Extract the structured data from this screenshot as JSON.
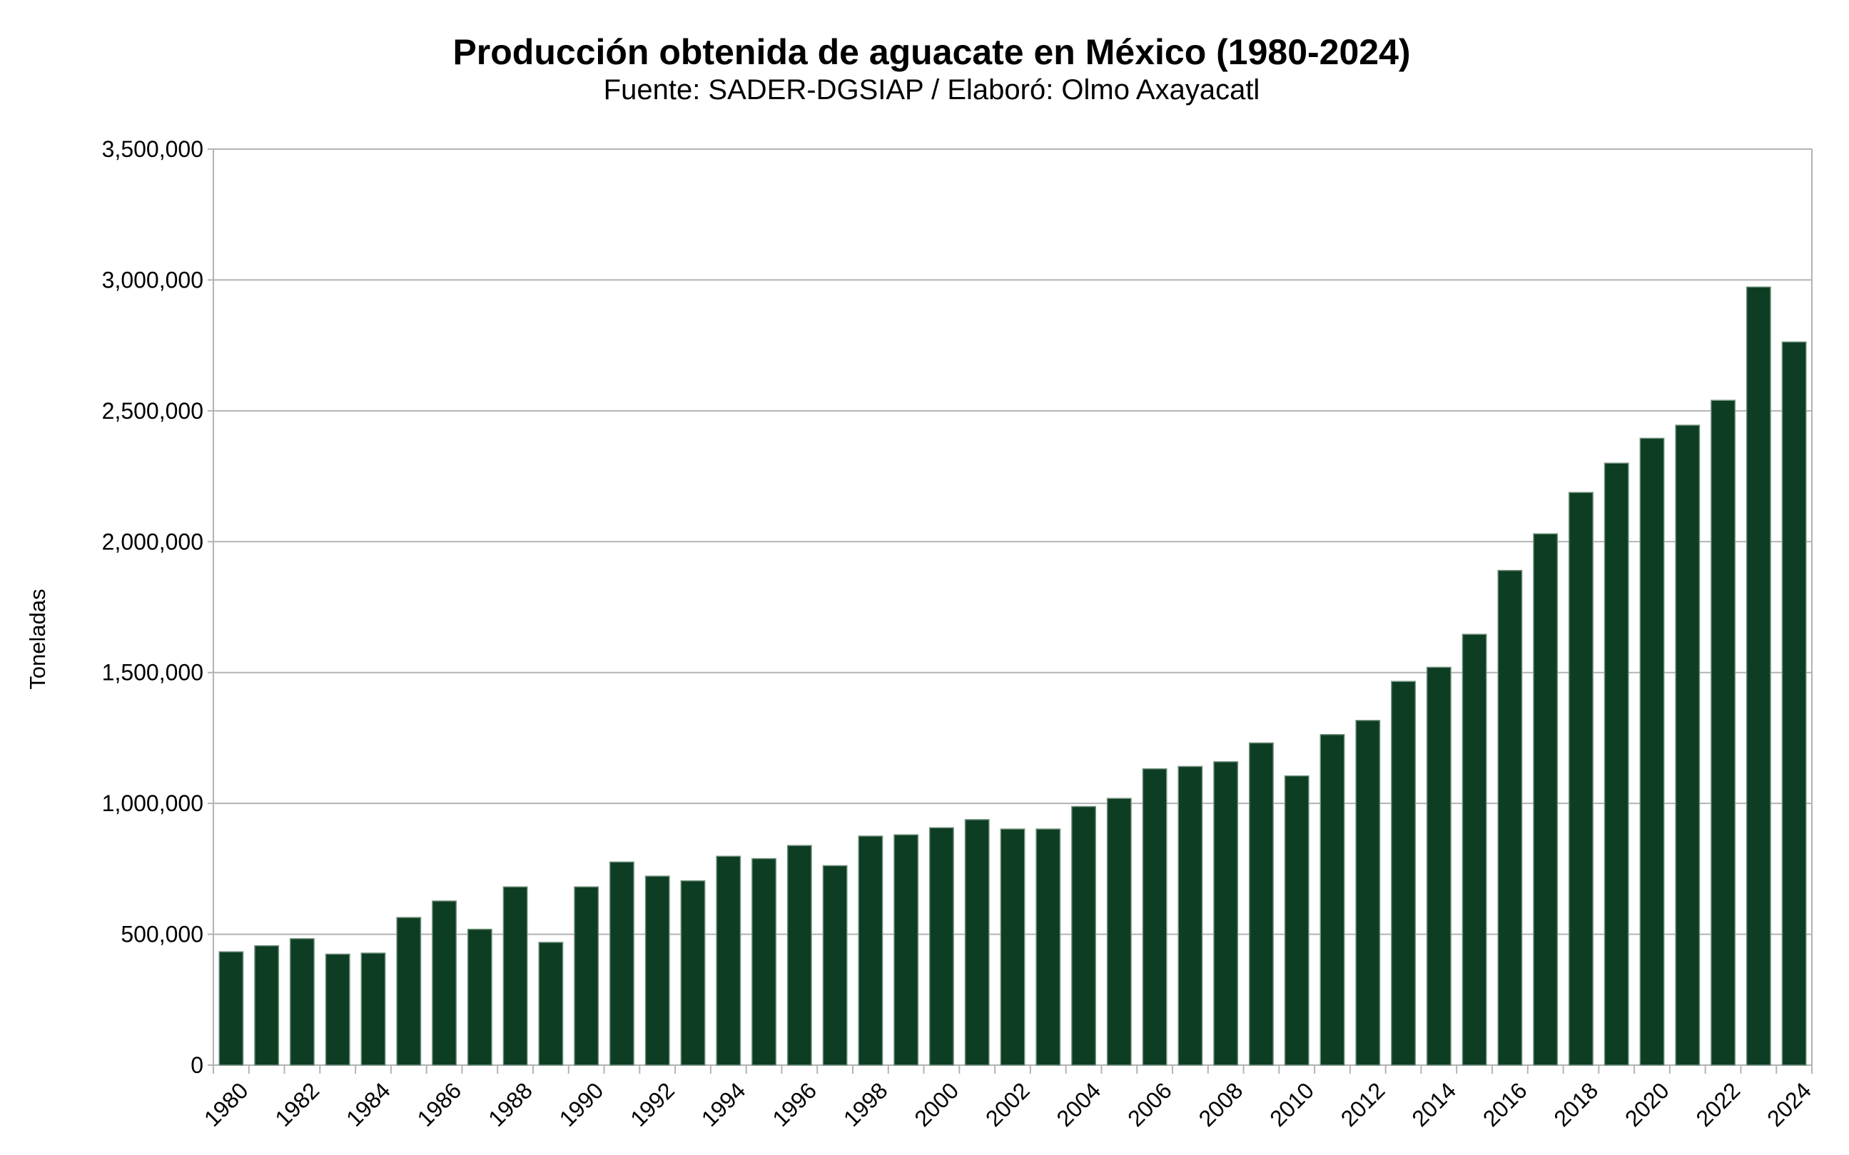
{
  "chart_data": {
    "type": "bar",
    "title": "Producción obtenida de aguacate en México (1980-2024)",
    "subtitle": "Fuente: SADER-DGSIAP / Elaboró: Olmo Axayacatl",
    "xlabel": "",
    "ylabel": "Toneladas",
    "ylim": [
      0,
      3500000
    ],
    "yticks": [
      "0",
      "500,000",
      "1,000,000",
      "1,500,000",
      "2,000,000",
      "2,500,000",
      "3,000,000",
      "3,500,000"
    ],
    "grid": true,
    "bar_color": "#0d3d22",
    "categories": [
      1980,
      1981,
      1982,
      1983,
      1984,
      1985,
      1986,
      1987,
      1988,
      1989,
      1990,
      1991,
      1992,
      1993,
      1994,
      1995,
      1996,
      1997,
      1998,
      1999,
      2000,
      2001,
      2002,
      2003,
      2004,
      2005,
      2006,
      2007,
      2008,
      2009,
      2010,
      2011,
      2012,
      2013,
      2014,
      2015,
      2016,
      2017,
      2018,
      2019,
      2020,
      2021,
      2022,
      2023,
      2024
    ],
    "values": [
      433000,
      456000,
      483000,
      424000,
      428000,
      564000,
      627000,
      519000,
      681000,
      469000,
      681000,
      776000,
      722000,
      704000,
      798000,
      789000,
      839000,
      762000,
      875000,
      880000,
      907000,
      938000,
      902000,
      902000,
      988000,
      1019000,
      1132000,
      1141000,
      1159000,
      1231000,
      1105000,
      1263000,
      1317000,
      1466000,
      1520000,
      1646000,
      1890000,
      2030000,
      2188000,
      2300000,
      2395000,
      2445000,
      2540000,
      2973000,
      2763000
    ]
  }
}
